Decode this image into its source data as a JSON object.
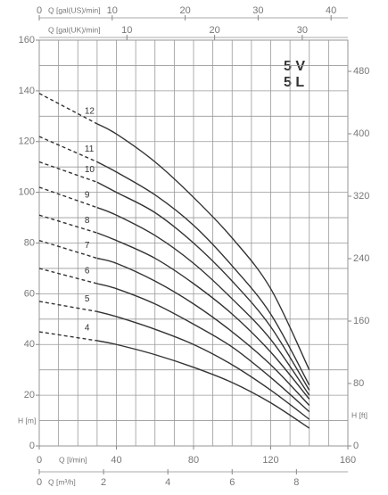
{
  "chart_data": {
    "type": "line",
    "title": [
      "5 V",
      "5 L"
    ],
    "x": [
      0,
      30,
      40,
      60,
      80,
      100,
      120,
      140
    ],
    "dashed_to": 30,
    "series": [
      {
        "name": "4",
        "color": "#333333",
        "values": [
          45,
          41.5,
          40,
          36,
          31,
          25,
          17,
          7
        ]
      },
      {
        "name": "5",
        "color": "#333333",
        "values": [
          57,
          53,
          51,
          46,
          40,
          32,
          22,
          10.5
        ]
      },
      {
        "name": "6",
        "color": "#333333",
        "values": [
          70,
          64,
          62,
          56,
          48,
          39,
          27,
          13.5
        ]
      },
      {
        "name": "7",
        "color": "#333333",
        "values": [
          81,
          74,
          72,
          65,
          56,
          45,
          32,
          16
        ]
      },
      {
        "name": "8",
        "color": "#333333",
        "values": [
          91,
          84,
          81,
          74,
          64,
          52,
          37,
          18.5
        ]
      },
      {
        "name": "9",
        "color": "#333333",
        "values": [
          102,
          94,
          91,
          83,
          72,
          58,
          42,
          20
        ]
      },
      {
        "name": "10",
        "color": "#333333",
        "values": [
          112,
          104,
          100,
          92,
          80,
          65,
          47,
          22
        ]
      },
      {
        "name": "11",
        "color": "#333333",
        "values": [
          122,
          112,
          108,
          99,
          87,
          71,
          52,
          24
        ]
      },
      {
        "name": "12",
        "color": "#333333",
        "values": [
          139,
          127,
          123,
          112,
          98,
          82,
          62,
          30
        ]
      }
    ],
    "ylabel": "H [m]",
    "ylim": [
      0,
      160
    ],
    "yticks": [
      0,
      20,
      40,
      60,
      80,
      100,
      120,
      140,
      160
    ],
    "y2label": "H [ft]",
    "y2lim": [
      0,
      520
    ],
    "y2ticks": [
      0,
      80,
      160,
      240,
      320,
      400,
      480
    ],
    "xlabel": "Q [l/min]",
    "xlim": [
      0,
      160
    ],
    "xticks": [
      0,
      40,
      80,
      120,
      160
    ],
    "xgrid": [
      0,
      10,
      20,
      30,
      40,
      50,
      60,
      70,
      80,
      90,
      100,
      110,
      120,
      130,
      140,
      150,
      160
    ],
    "ygrid": [
      0,
      10,
      20,
      30,
      40,
      50,
      60,
      70,
      80,
      90,
      100,
      110,
      120,
      130,
      140,
      150,
      160
    ],
    "extra_x_axes": [
      {
        "position": "bottom",
        "label": "Q [m³/h]",
        "xlim": [
          0,
          9.6
        ],
        "xticks": [
          0,
          2,
          4,
          6,
          8
        ]
      },
      {
        "position": "top",
        "label": "Q [gal(US)/min]",
        "xlim": [
          0,
          42.3
        ],
        "xticks": [
          0,
          10,
          20,
          30,
          40
        ]
      },
      {
        "position": "top",
        "label": "Q [gal(UK)/min]",
        "xlim": [
          0,
          35.2
        ],
        "xticks": [
          10,
          20,
          30
        ]
      }
    ]
  }
}
